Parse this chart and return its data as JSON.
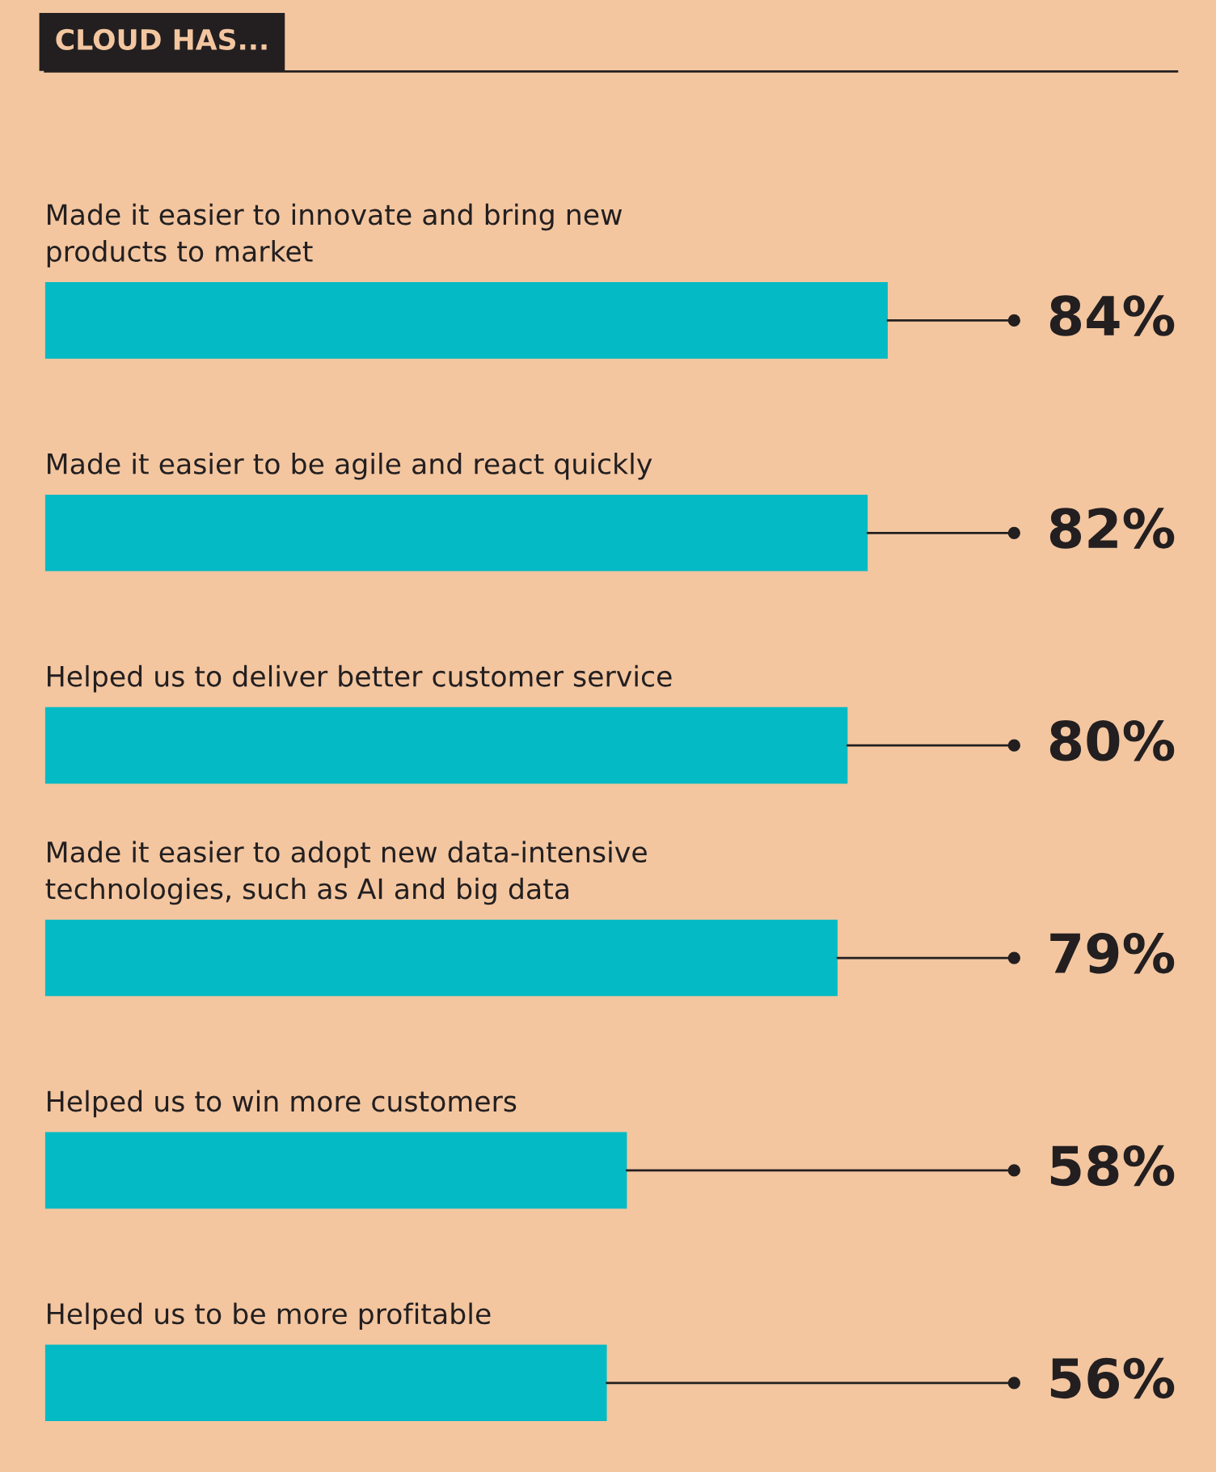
{
  "chart_data": {
    "type": "bar",
    "orientation": "horizontal",
    "title": "CLOUD HAS...",
    "categories": [
      "Made it easier to innovate and bring new\nproducts to market",
      "Made it easier to be agile and react quickly",
      "Helped us to deliver better customer service",
      "Made it easier to adopt new data-intensive\ntechnologies, such as AI and big data",
      "Helped us to win more customers",
      "Helped us to be more profitable"
    ],
    "values": [
      84,
      82,
      80,
      79,
      58,
      56
    ],
    "value_labels": [
      "84%",
      "82%",
      "80%",
      "79%",
      "58%",
      "56%"
    ],
    "color": "#04bac4"
  }
}
